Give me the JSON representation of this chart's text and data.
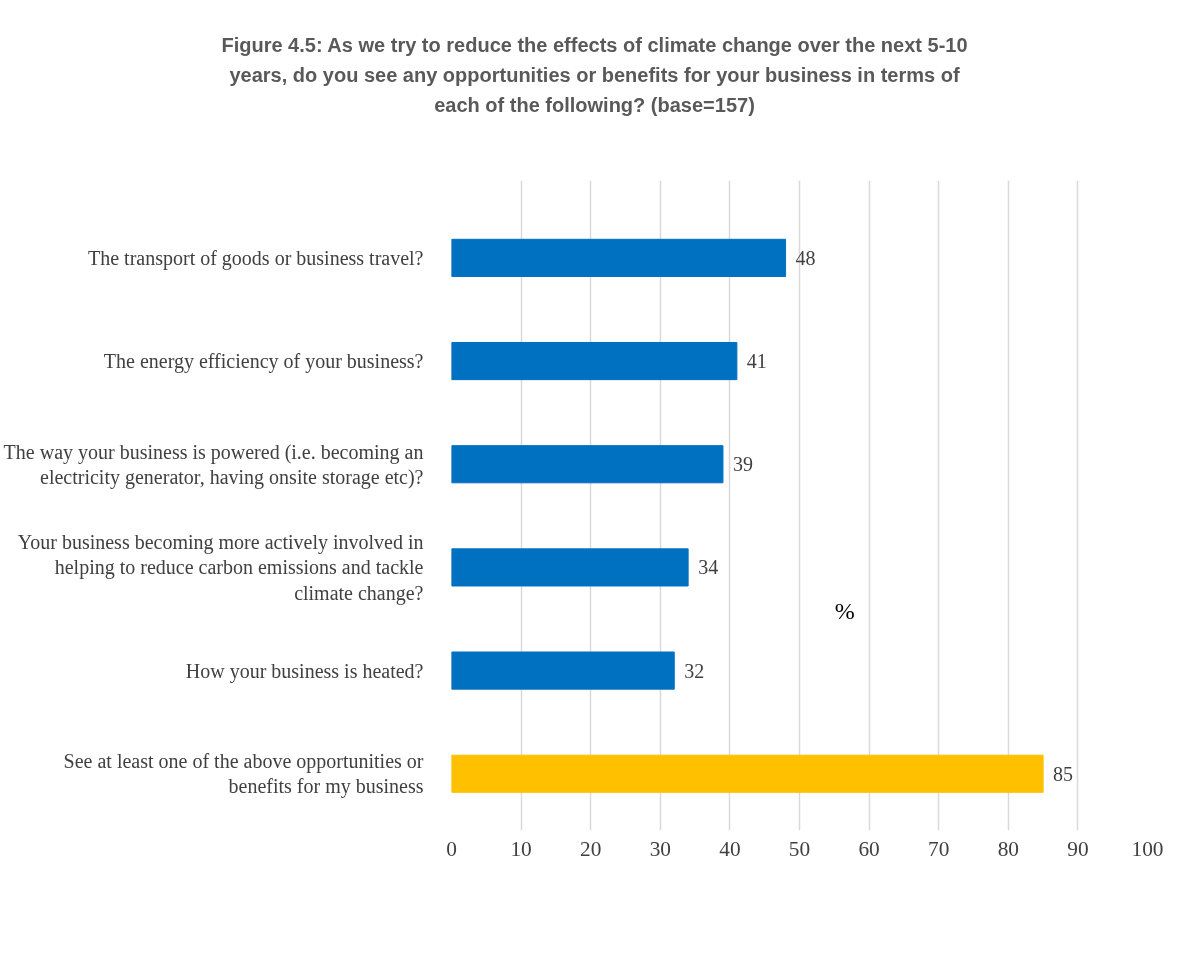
{
  "chart_data": {
    "type": "bar",
    "orientation": "horizontal",
    "title": "Figure 4.5: As we try to reduce the effects of climate change over the next 5-10 years, do you see any opportunities or benefits for your business in terms of each of the following? (base=157)",
    "categories": [
      "The transport of goods or business travel?",
      "The energy efficiency of your business?",
      "The way your business is powered (i.e. becoming an electricity generator, having onsite storage etc)?",
      "Your business becoming more actively involved in helping to reduce carbon emissions and tackle climate change?",
      "How your business is heated?",
      "See at least one of the above opportunities or benefits for my business"
    ],
    "values": [
      48,
      41,
      39,
      34,
      32,
      85
    ],
    "colors": [
      "#0070c0",
      "#0070c0",
      "#0070c0",
      "#0070c0",
      "#0070c0",
      "#ffc000"
    ],
    "xlim": [
      0,
      100
    ],
    "xticks": [
      0,
      10,
      20,
      30,
      40,
      50,
      60,
      70,
      80,
      90,
      100
    ],
    "grid": "x",
    "data_labels": true,
    "annotations": [
      "%"
    ]
  }
}
